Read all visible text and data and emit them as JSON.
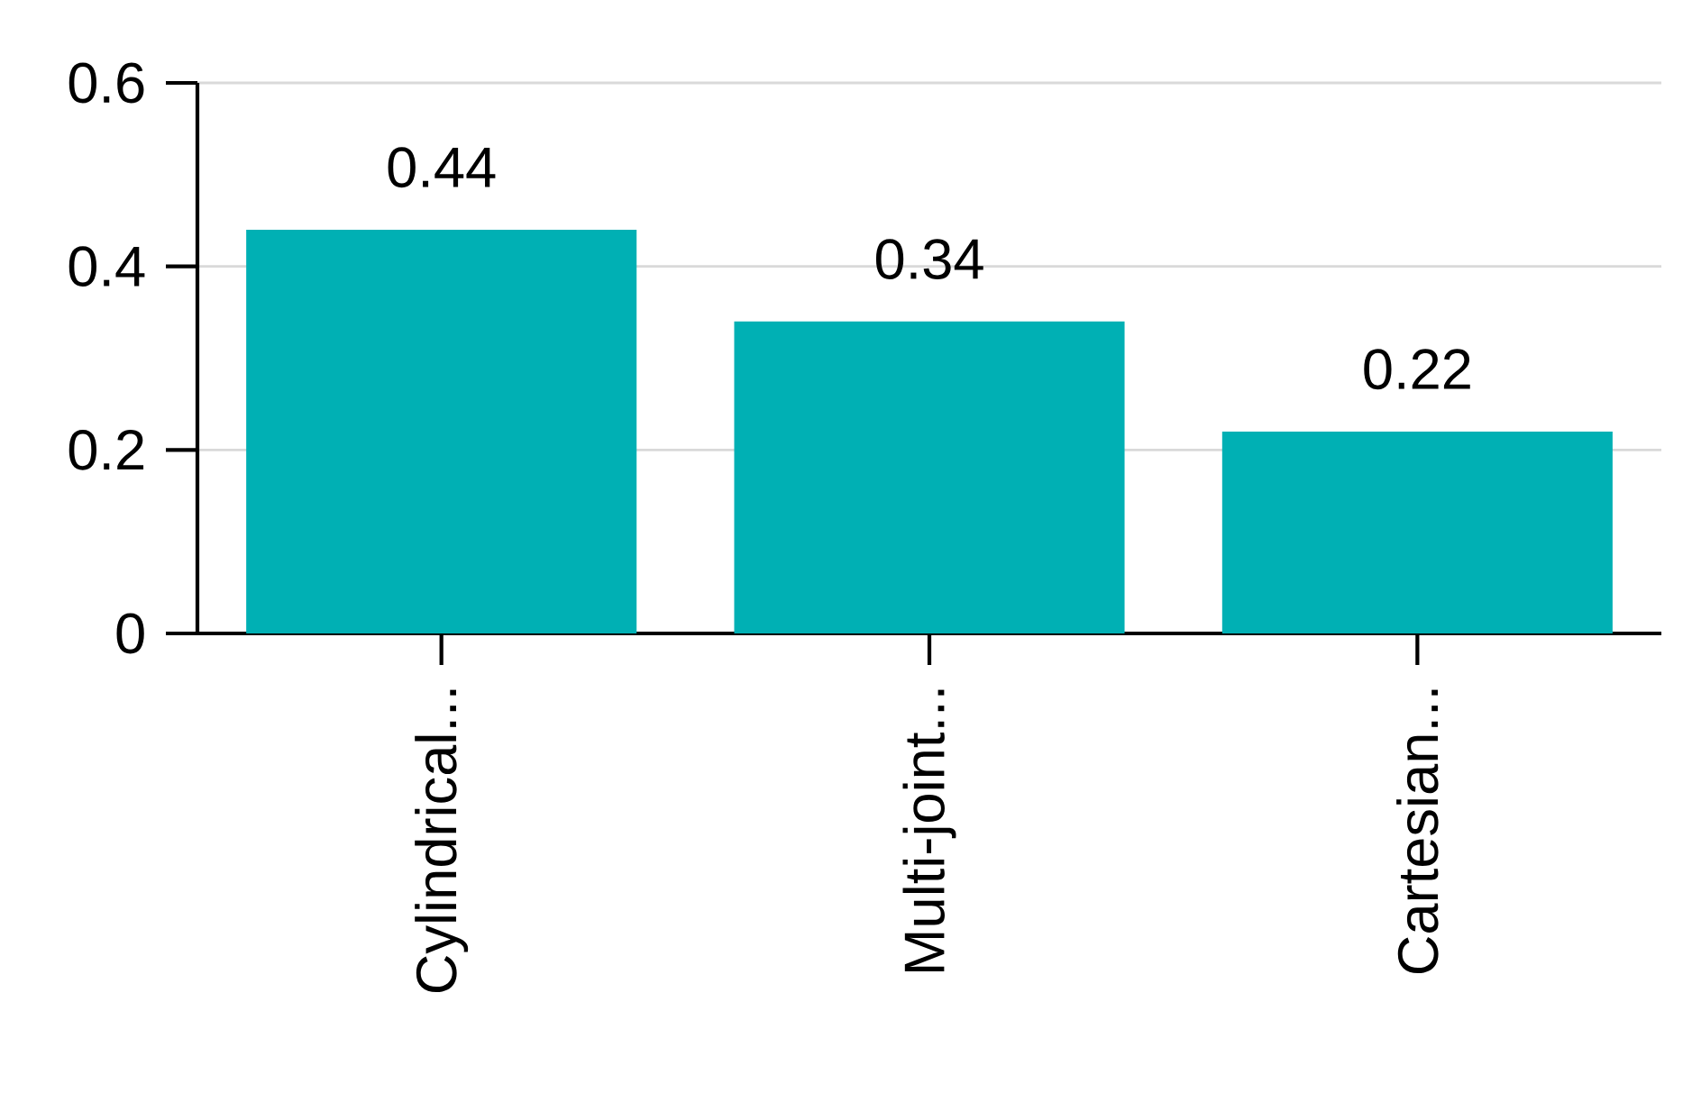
{
  "chart_data": {
    "type": "bar",
    "categories": [
      "Cylindrical...",
      "Multi-joint...",
      "Cartesian..."
    ],
    "values": [
      0.44,
      0.34,
      0.22
    ],
    "color": "#00b0b4",
    "ylim": [
      0,
      0.6
    ],
    "yticks": [
      0,
      0.2,
      0.4,
      0.6
    ],
    "grid": "y",
    "data_labels": true
  }
}
